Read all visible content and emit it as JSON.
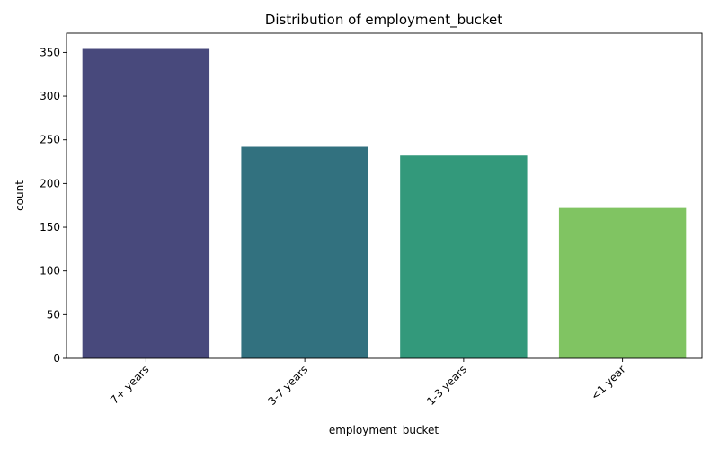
{
  "chart_data": {
    "type": "bar",
    "title": "Distribution of employment_bucket",
    "xlabel": "employment_bucket",
    "ylabel": "count",
    "categories": [
      "7+ years",
      "3-7 years",
      "1-3 years",
      "<1 year"
    ],
    "values": [
      354,
      242,
      232,
      172
    ],
    "colors": [
      "#48497c",
      "#32717f",
      "#33997b",
      "#80c462"
    ],
    "ylim": [
      0,
      372
    ],
    "yticks": [
      0,
      50,
      100,
      150,
      200,
      250,
      300,
      350
    ],
    "ytick_labels": [
      "0",
      "50",
      "100",
      "150",
      "200",
      "250",
      "300",
      "350"
    ],
    "xtick_rotation": 45,
    "grid": false,
    "legend": "none"
  }
}
